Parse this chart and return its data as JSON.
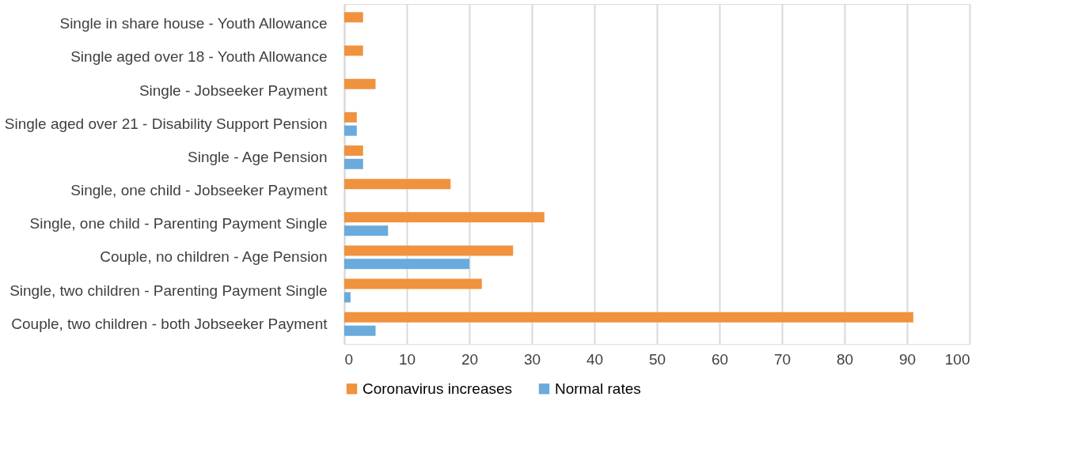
{
  "chart_data": {
    "type": "bar",
    "orientation": "horizontal",
    "categories": [
      "Single in share house - Youth Allowance",
      "Single aged over 18 - Youth Allowance",
      "Single - Jobseeker Payment",
      "Single aged over 21 - Disability Support Pension",
      "Single - Age Pension",
      "Single, one child - Jobseeker Payment",
      "Single, one child - Parenting Payment Single",
      "Couple, no children - Age Pension",
      "Single, two children - Parenting Payment Single",
      "Couple, two children - both Jobseeker Payment"
    ],
    "series": [
      {
        "name": "Coronavirus increases",
        "color": "#f0923e",
        "values": [
          3,
          3,
          5,
          2,
          3,
          17,
          32,
          27,
          22,
          91
        ]
      },
      {
        "name": "Normal rates",
        "color": "#6aaadc",
        "values": [
          null,
          null,
          null,
          2,
          3,
          null,
          7,
          20,
          1,
          5
        ]
      }
    ],
    "xlim": [
      0,
      100
    ],
    "xticks": [
      0,
      10,
      20,
      30,
      40,
      50,
      60,
      70,
      80,
      90,
      100
    ],
    "grid": "x",
    "legend": "bottom"
  }
}
